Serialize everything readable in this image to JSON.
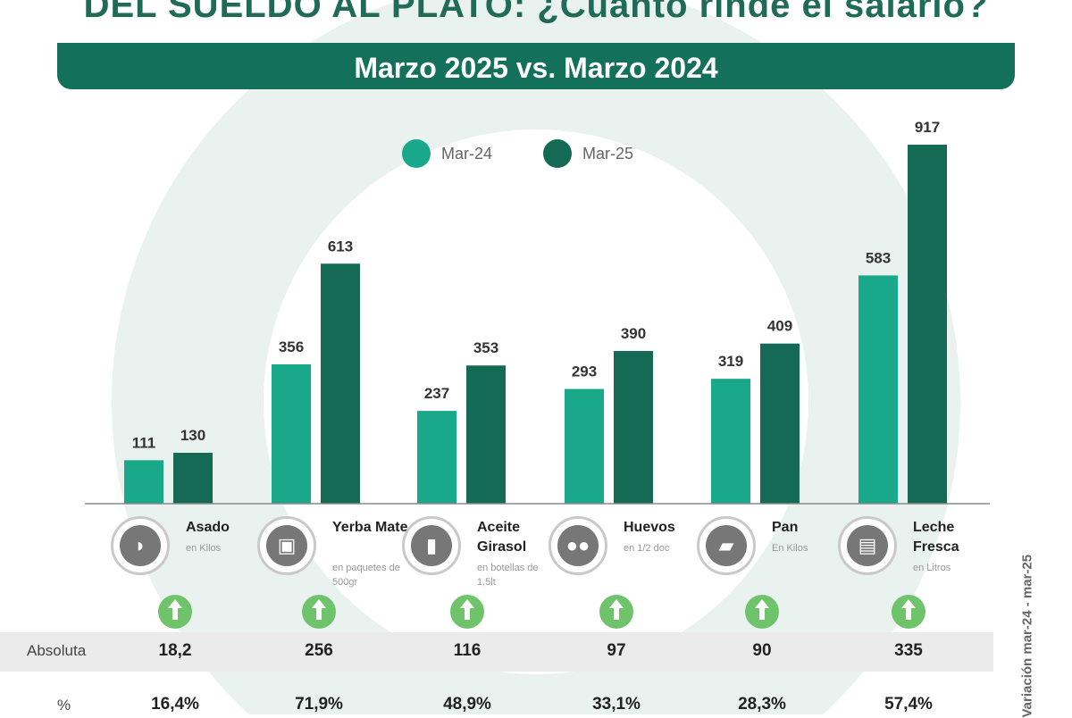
{
  "header": {
    "title": "DEL SUELDO AL PLATO: ¿Cuánto rinde el salario?",
    "subtitle": "Marzo 2025 vs. Marzo 2024"
  },
  "colors": {
    "mar24": "#1aa88b",
    "mar25": "#146a55",
    "up": "#6fc36a"
  },
  "chart_data": {
    "type": "bar",
    "title": "DEL SUELDO AL PLATO: ¿Cuánto rinde el salario?",
    "subtitle": "Marzo 2025 vs. Marzo 2024",
    "categories": [
      "Asado",
      "Yerba Mate",
      "Aceite Girasol",
      "Huevos",
      "Pan",
      "Leche Fresca"
    ],
    "series": [
      {
        "name": "Mar-24",
        "values": [
          111,
          356,
          237,
          293,
          319,
          583
        ]
      },
      {
        "name": "Mar-25",
        "values": [
          130,
          613,
          353,
          390,
          409,
          917
        ]
      }
    ],
    "ylim": [
      0,
      1000
    ],
    "legend": "top-center",
    "grid": false
  },
  "products": [
    {
      "name": "Asado",
      "unit": "en Kilos",
      "icon": "meat-icon"
    },
    {
      "name": "Yerba Mate",
      "unit": "en paquetes de 500gr",
      "icon": "yerba-icon"
    },
    {
      "name": "Aceite Girasol",
      "unit": "en botellas de 1,5lt",
      "icon": "oil-bottle-icon"
    },
    {
      "name": "Huevos",
      "unit": "en 1/2 doc",
      "icon": "eggs-icon"
    },
    {
      "name": "Pan",
      "unit": "En Kilos",
      "icon": "bread-icon"
    },
    {
      "name": "Leche Fresca",
      "unit": "en Litros",
      "icon": "milk-icon"
    }
  ],
  "variation": {
    "side_label": "Variación mar-24 - mar-25",
    "absolute_label": "Absoluta",
    "percent_label": "%",
    "absolute": [
      "18,2",
      "256",
      "116",
      "97",
      "90",
      "335"
    ],
    "percent": [
      "16,4%",
      "71,9%",
      "48,9%",
      "33,1%",
      "28,3%",
      "57,4%"
    ]
  }
}
